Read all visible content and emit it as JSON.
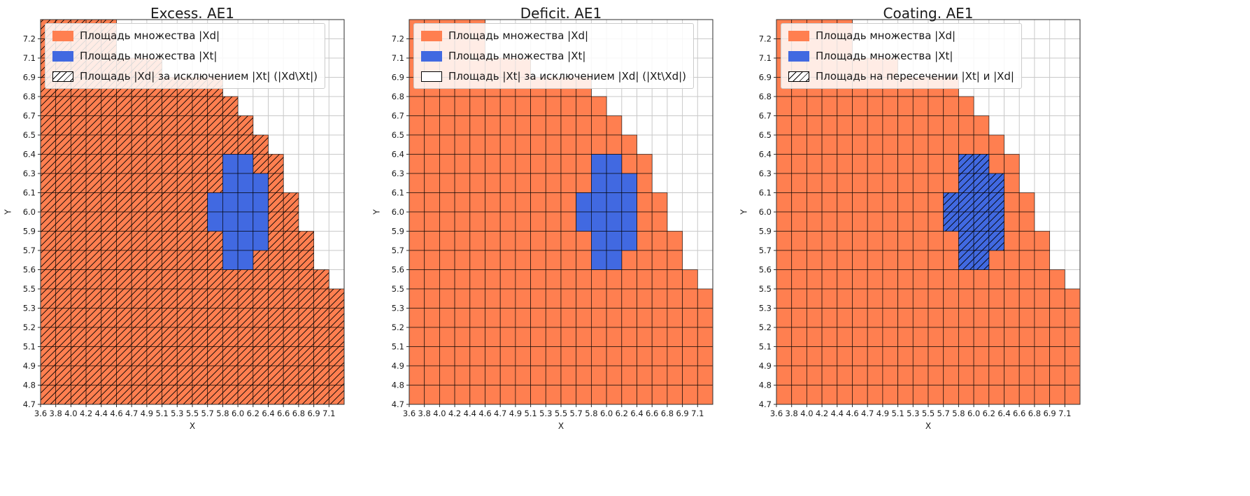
{
  "figure": {
    "background": "#ffffff"
  },
  "colors": {
    "xd_fill": "#FF7F50",
    "xt_fill": "#4169E1",
    "cell_edge": "rgba(0,0,0,0.75)",
    "grid_line": "#c9c9c9",
    "hatch_line": "#000000",
    "frame": "#2e2e2e"
  },
  "grid": {
    "columns": 20,
    "rows": 20,
    "x_range": [
      3.6,
      7.1
    ],
    "y_range": [
      4.7,
      7.2
    ],
    "orange_row_counts_top_to_bottom": [
      5,
      5,
      8,
      12,
      13,
      14,
      15,
      16,
      16,
      17,
      17,
      18,
      18,
      19,
      20,
      20,
      20,
      20,
      20,
      20
    ],
    "blue_cells": [
      [
        7,
        [
          12,
          13
        ]
      ],
      [
        8,
        [
          12,
          13,
          14
        ]
      ],
      [
        9,
        [
          11,
          12,
          13,
          14
        ]
      ],
      [
        10,
        [
          11,
          12,
          13,
          14
        ]
      ],
      [
        11,
        [
          12,
          13,
          14
        ]
      ],
      [
        12,
        [
          12,
          13
        ]
      ]
    ]
  },
  "chart_data": [
    {
      "type": "heatmap",
      "title": "Excess. AE1",
      "xlabel": "X",
      "ylabel": "Y",
      "hatch_region": "xd",
      "x_ticks": [
        "3.6",
        "3.8",
        "4.0",
        "4.2",
        "4.4",
        "4.6",
        "4.7",
        "4.9",
        "5.1",
        "5.3",
        "5.5",
        "5.7",
        "5.8",
        "6.0",
        "6.2",
        "6.4",
        "6.6",
        "6.8",
        "6.9",
        "7.1"
      ],
      "y_ticks": [
        "7.2",
        "7.1",
        "6.9",
        "6.8",
        "6.7",
        "6.5",
        "6.4",
        "6.3",
        "6.1",
        "6.0",
        "5.9",
        "5.7",
        "5.6",
        "5.5",
        "5.3",
        "5.2",
        "5.1",
        "4.9",
        "4.8",
        "4.7"
      ],
      "legend": [
        {
          "swatch": "orange",
          "label": "Площадь множества |Xd|"
        },
        {
          "swatch": "blue",
          "label": "Площадь множества  |Xt|"
        },
        {
          "swatch": "hatch",
          "label": "Площадь |Xd| за исключением |Xt| (|Xd\\Xt|)"
        }
      ]
    },
    {
      "type": "heatmap",
      "title": "Deficit. AE1",
      "xlabel": "X",
      "ylabel": "Y",
      "hatch_region": "none",
      "x_ticks": [
        "3.6",
        "3.8",
        "4.0",
        "4.2",
        "4.4",
        "4.6",
        "4.7",
        "4.9",
        "5.1",
        "5.3",
        "5.5",
        "5.7",
        "5.8",
        "6.0",
        "6.2",
        "6.4",
        "6.6",
        "6.8",
        "6.9",
        "7.1"
      ],
      "y_ticks": [
        "7.2",
        "7.1",
        "6.9",
        "6.8",
        "6.7",
        "6.5",
        "6.4",
        "6.3",
        "6.1",
        "6.0",
        "5.9",
        "5.7",
        "5.6",
        "5.5",
        "5.3",
        "5.2",
        "5.1",
        "4.9",
        "4.8",
        "4.7"
      ],
      "legend": [
        {
          "swatch": "orange",
          "label": "Площадь множества |Xd|"
        },
        {
          "swatch": "blue",
          "label": "Площадь множества  |Xt|"
        },
        {
          "swatch": "empty",
          "label": "Площадь |Xt| за исключением |Xd| (|Xt\\Xd|)"
        }
      ]
    },
    {
      "type": "heatmap",
      "title": "Coating. AE1",
      "xlabel": "X",
      "ylabel": "Y",
      "hatch_region": "xt",
      "x_ticks": [
        "3.6",
        "3.8",
        "4.0",
        "4.2",
        "4.4",
        "4.6",
        "4.7",
        "4.9",
        "5.1",
        "5.3",
        "5.5",
        "5.7",
        "5.8",
        "6.0",
        "6.2",
        "6.4",
        "6.6",
        "6.8",
        "6.9",
        "7.1"
      ],
      "y_ticks": [
        "7.2",
        "7.1",
        "6.9",
        "6.8",
        "6.7",
        "6.5",
        "6.4",
        "6.3",
        "6.1",
        "6.0",
        "5.9",
        "5.7",
        "5.6",
        "5.5",
        "5.3",
        "5.2",
        "5.1",
        "4.9",
        "4.8",
        "4.7"
      ],
      "legend": [
        {
          "swatch": "orange",
          "label": "Площадь множества |Xd|"
        },
        {
          "swatch": "blue",
          "label": "Площадь множества  |Xt|"
        },
        {
          "swatch": "hatch",
          "label": "Площадь на пересечении |Xt| и |Xd|"
        }
      ]
    }
  ]
}
